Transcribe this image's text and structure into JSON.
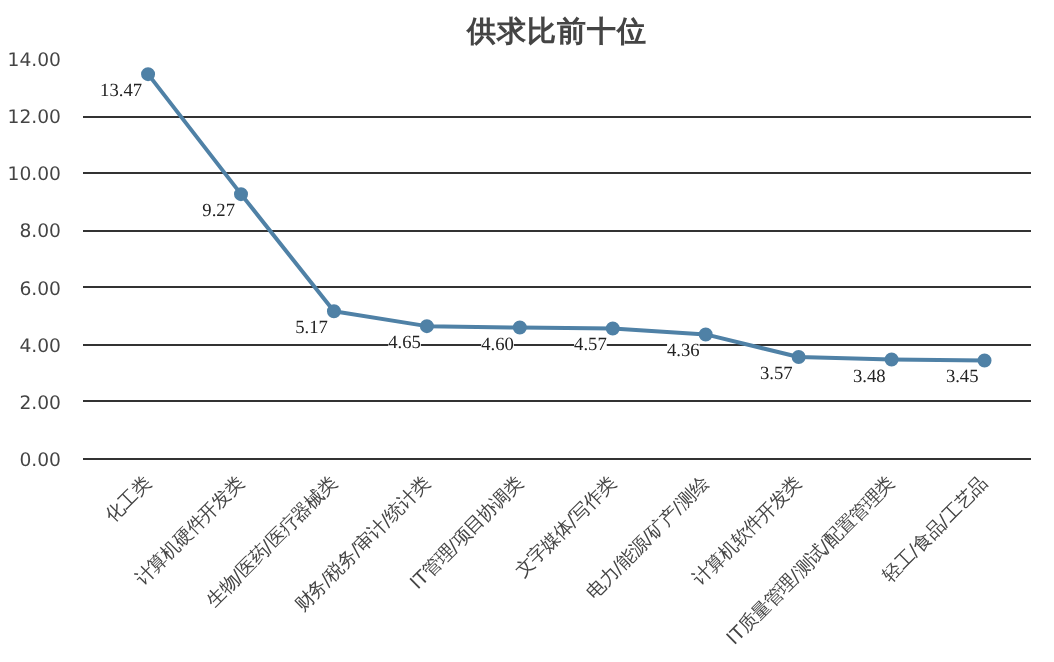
{
  "chart_data": {
    "type": "line",
    "title": "供求比前十位",
    "categories": [
      "化工类",
      "计算机硬件开发类",
      "生物/医药/医疗器械类",
      "财务/税务/审计/统计类",
      "IT管理/项目协调类",
      "文字媒体/写作类",
      "电力/能源/矿产/测绘",
      "计算机软件开发类",
      "IT质量管理/测试/配置管理类",
      "轻工/食品/工艺品"
    ],
    "series": [
      {
        "color": "#4f81a6",
        "values": [
          13.47,
          9.27,
          5.17,
          4.65,
          4.6,
          4.57,
          4.36,
          3.57,
          3.48,
          3.45
        ],
        "value_labels": [
          "13.47",
          "9.27",
          "5.17",
          "4.65",
          "4.60",
          "4.57",
          "4.36",
          "3.57",
          "3.48",
          "3.45"
        ]
      }
    ],
    "ylim": [
      0,
      14
    ],
    "yticks": [
      {
        "value": 0,
        "label": "0.00"
      },
      {
        "value": 2,
        "label": "2.00"
      },
      {
        "value": 4,
        "label": "4.00"
      },
      {
        "value": 6,
        "label": "6.00"
      },
      {
        "value": 8,
        "label": "8.00"
      },
      {
        "value": 10,
        "label": "10.00"
      },
      {
        "value": 12,
        "label": "12.00"
      },
      {
        "value": 14,
        "label": "14.00"
      }
    ],
    "grid": "y",
    "marker": "circle",
    "line_style": "solid"
  }
}
